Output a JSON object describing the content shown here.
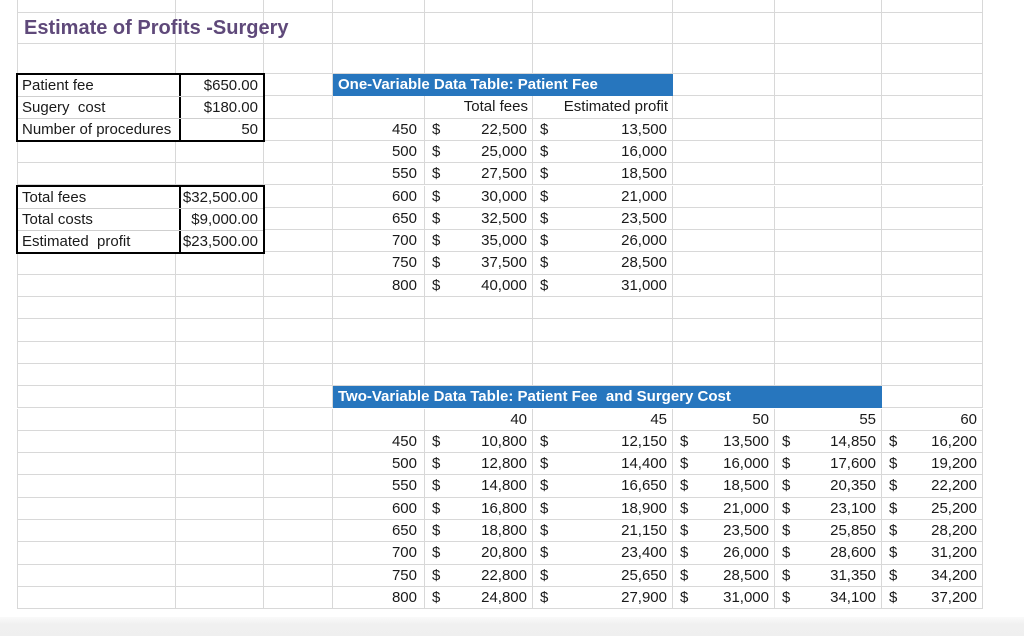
{
  "sheet": {
    "title": "Estimate of Profits -Surgery",
    "currency_symbol": "$",
    "colors": {
      "header_blue": "#2776be",
      "title_purple": "#5f497a",
      "gridline": "#d8d8d8"
    },
    "input_table": {
      "rows": [
        {
          "label": "Patient fee",
          "value": "$650.00"
        },
        {
          "label": "Sugery  cost",
          "value": "$180.00"
        },
        {
          "label": "Number of procedures",
          "value": "50"
        }
      ]
    },
    "summary_table": {
      "rows": [
        {
          "label": "Total fees",
          "value": "$32,500.00"
        },
        {
          "label": "Total costs",
          "value": "$9,000.00"
        },
        {
          "label": "Estimated  profit",
          "value": "$23,500.00"
        }
      ]
    },
    "one_var_table": {
      "header": "One-Variable Data Table: Patient Fee",
      "col_headers": [
        "Total fees",
        "Estimated profit"
      ],
      "rows": [
        {
          "fee": "450",
          "total_fees": "22,500",
          "profit": "13,500"
        },
        {
          "fee": "500",
          "total_fees": "25,000",
          "profit": "16,000"
        },
        {
          "fee": "550",
          "total_fees": "27,500",
          "profit": "18,500"
        },
        {
          "fee": "600",
          "total_fees": "30,000",
          "profit": "21,000"
        },
        {
          "fee": "650",
          "total_fees": "32,500",
          "profit": "23,500"
        },
        {
          "fee": "700",
          "total_fees": "35,000",
          "profit": "26,000"
        },
        {
          "fee": "750",
          "total_fees": "37,500",
          "profit": "28,500"
        },
        {
          "fee": "800",
          "total_fees": "40,000",
          "profit": "31,000"
        }
      ]
    },
    "two_var_table": {
      "header": "Two-Variable Data Table: Patient Fee  and Surgery Cost",
      "col_headers": [
        "40",
        "45",
        "50",
        "55",
        "60"
      ],
      "rows": [
        {
          "fee": "450",
          "values": [
            "10,800",
            "12,150",
            "13,500",
            "14,850",
            "16,200"
          ]
        },
        {
          "fee": "500",
          "values": [
            "12,800",
            "14,400",
            "16,000",
            "17,600",
            "19,200"
          ]
        },
        {
          "fee": "550",
          "values": [
            "14,800",
            "16,650",
            "18,500",
            "20,350",
            "22,200"
          ]
        },
        {
          "fee": "600",
          "values": [
            "16,800",
            "18,900",
            "21,000",
            "23,100",
            "25,200"
          ]
        },
        {
          "fee": "650",
          "values": [
            "18,800",
            "21,150",
            "23,500",
            "25,850",
            "28,200"
          ]
        },
        {
          "fee": "700",
          "values": [
            "20,800",
            "23,400",
            "26,000",
            "28,600",
            "31,200"
          ]
        },
        {
          "fee": "750",
          "values": [
            "22,800",
            "25,650",
            "28,500",
            "31,350",
            "34,200"
          ]
        },
        {
          "fee": "800",
          "values": [
            "24,800",
            "27,900",
            "31,000",
            "34,100",
            "37,200"
          ]
        }
      ]
    }
  }
}
